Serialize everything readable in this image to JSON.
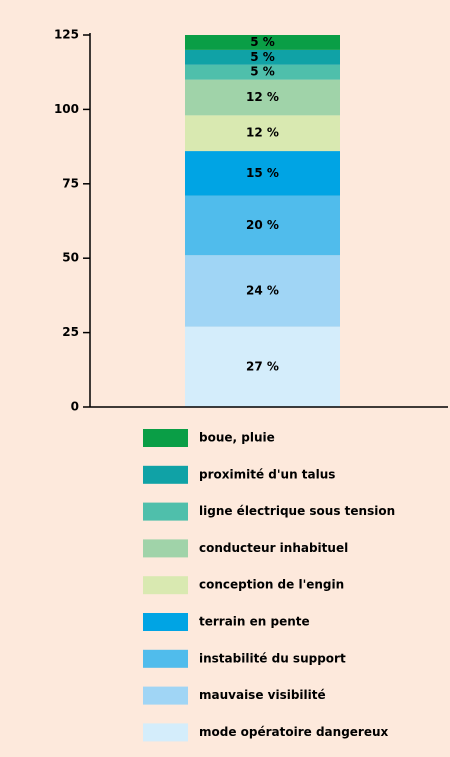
{
  "chart_data": {
    "type": "stacked_bar",
    "categories": [
      null
    ],
    "ylim": [
      0,
      125
    ],
    "yticks": [
      0,
      25,
      50,
      75,
      100,
      125
    ],
    "series": [
      {
        "name": "boue, pluie",
        "color": "#0a9e46",
        "values": [
          5
        ],
        "value_labels": [
          "5 %"
        ]
      },
      {
        "name": "proximité d'un talus",
        "color": "#10a2a6",
        "values": [
          5
        ],
        "value_labels": [
          "5 %"
        ]
      },
      {
        "name": "ligne électrique sous tension",
        "color": "#4fbfab",
        "values": [
          5
        ],
        "value_labels": [
          "5 %"
        ]
      },
      {
        "name": "conducteur inhabituel",
        "color": "#a0d3a9",
        "values": [
          12
        ],
        "value_labels": [
          "12 %"
        ]
      },
      {
        "name": "conception de l'engin",
        "color": "#d9e9b1",
        "values": [
          12
        ],
        "value_labels": [
          "12 %"
        ]
      },
      {
        "name": "terrain en pente",
        "color": "#00a4e4",
        "values": [
          15
        ],
        "value_labels": [
          "15 %"
        ]
      },
      {
        "name": "instabilité du support",
        "color": "#50bcec",
        "values": [
          20
        ],
        "value_labels": [
          "20 %"
        ]
      },
      {
        "name": "mauvaise visibilité",
        "color": "#a0d5f5",
        "values": [
          24
        ],
        "value_labels": [
          "24 %"
        ]
      },
      {
        "name": "mode opératoire dangereux",
        "color": "#d4edfb",
        "values": [
          27
        ],
        "value_labels": [
          "27 %"
        ]
      }
    ]
  }
}
